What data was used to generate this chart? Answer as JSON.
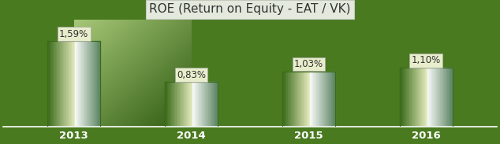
{
  "title": "ROE (Return on Equity - EAT / VK)",
  "categories": [
    "2013",
    "2014",
    "2015",
    "2016"
  ],
  "values": [
    1.59,
    0.83,
    1.03,
    1.1
  ],
  "value_labels": [
    "1,59%",
    "0,83%",
    "1,03%",
    "1,10%"
  ],
  "bar_color_light": "#d4eabc",
  "bar_color_dark": "#3a6b1a",
  "background_color_top_left": "#a8c878",
  "background_color_bottom_right": "#2d5a10",
  "label_bg_color": "#e8edcc",
  "title_fontsize": 11,
  "label_fontsize": 8.5,
  "tick_fontsize": 9.5,
  "ylim": [
    0,
    2.0
  ]
}
